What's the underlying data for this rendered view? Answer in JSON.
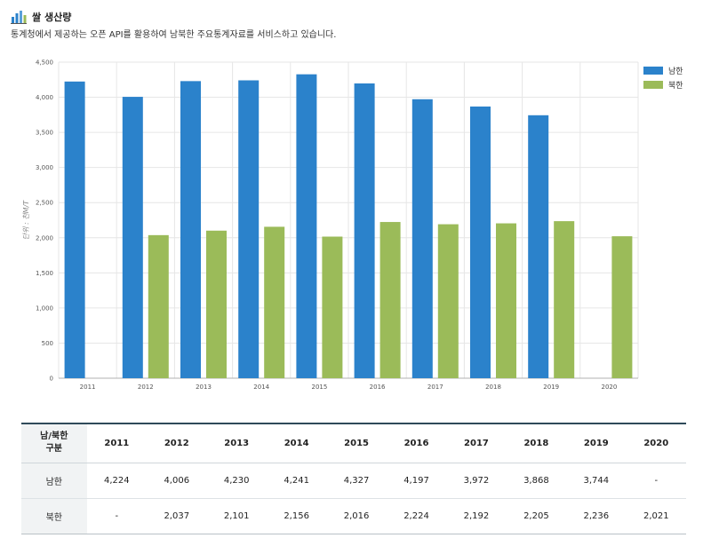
{
  "header": {
    "title": "쌀 생산량",
    "subtitle": "통계청에서 제공하는 오픈 API를 활용하여 남북한 주요통계자료를 서비스하고 있습니다."
  },
  "colors": {
    "south": "#2b82cb",
    "north": "#9bbb59",
    "grid": "#e6e6e6",
    "axis": "#b0b0b0"
  },
  "chart_data": {
    "type": "bar",
    "categories": [
      "2011",
      "2012",
      "2013",
      "2014",
      "2015",
      "2016",
      "2017",
      "2018",
      "2019",
      "2020"
    ],
    "series": [
      {
        "name": "남한",
        "values": [
          4224,
          4006,
          4230,
          4241,
          4327,
          4197,
          3972,
          3868,
          3744,
          null
        ]
      },
      {
        "name": "북한",
        "values": [
          null,
          2037,
          2101,
          2156,
          2016,
          2224,
          2192,
          2205,
          2236,
          2021
        ]
      }
    ],
    "ylabel": "단위 : 천M/T",
    "ylim": [
      0,
      4500
    ],
    "yticks": [
      0,
      500,
      1000,
      1500,
      2000,
      2500,
      3000,
      3500,
      4000,
      4500
    ],
    "ytick_labels": [
      "0",
      "500",
      "1,000",
      "1,500",
      "2,000",
      "2,500",
      "3,000",
      "3,500",
      "4,000",
      "4,500"
    ],
    "grid": true,
    "legend": "top-right"
  },
  "table": {
    "header_label_line1": "남/북한",
    "header_label_line2": "구분",
    "columns": [
      "2011",
      "2012",
      "2013",
      "2014",
      "2015",
      "2016",
      "2017",
      "2018",
      "2019",
      "2020"
    ],
    "rows": [
      {
        "label": "남한",
        "cells": [
          "4,224",
          "4,006",
          "4,230",
          "4,241",
          "4,327",
          "4,197",
          "3,972",
          "3,868",
          "3,744",
          "-"
        ]
      },
      {
        "label": "북한",
        "cells": [
          "-",
          "2,037",
          "2,101",
          "2,156",
          "2,016",
          "2,224",
          "2,192",
          "2,205",
          "2,236",
          "2,021"
        ]
      }
    ]
  }
}
